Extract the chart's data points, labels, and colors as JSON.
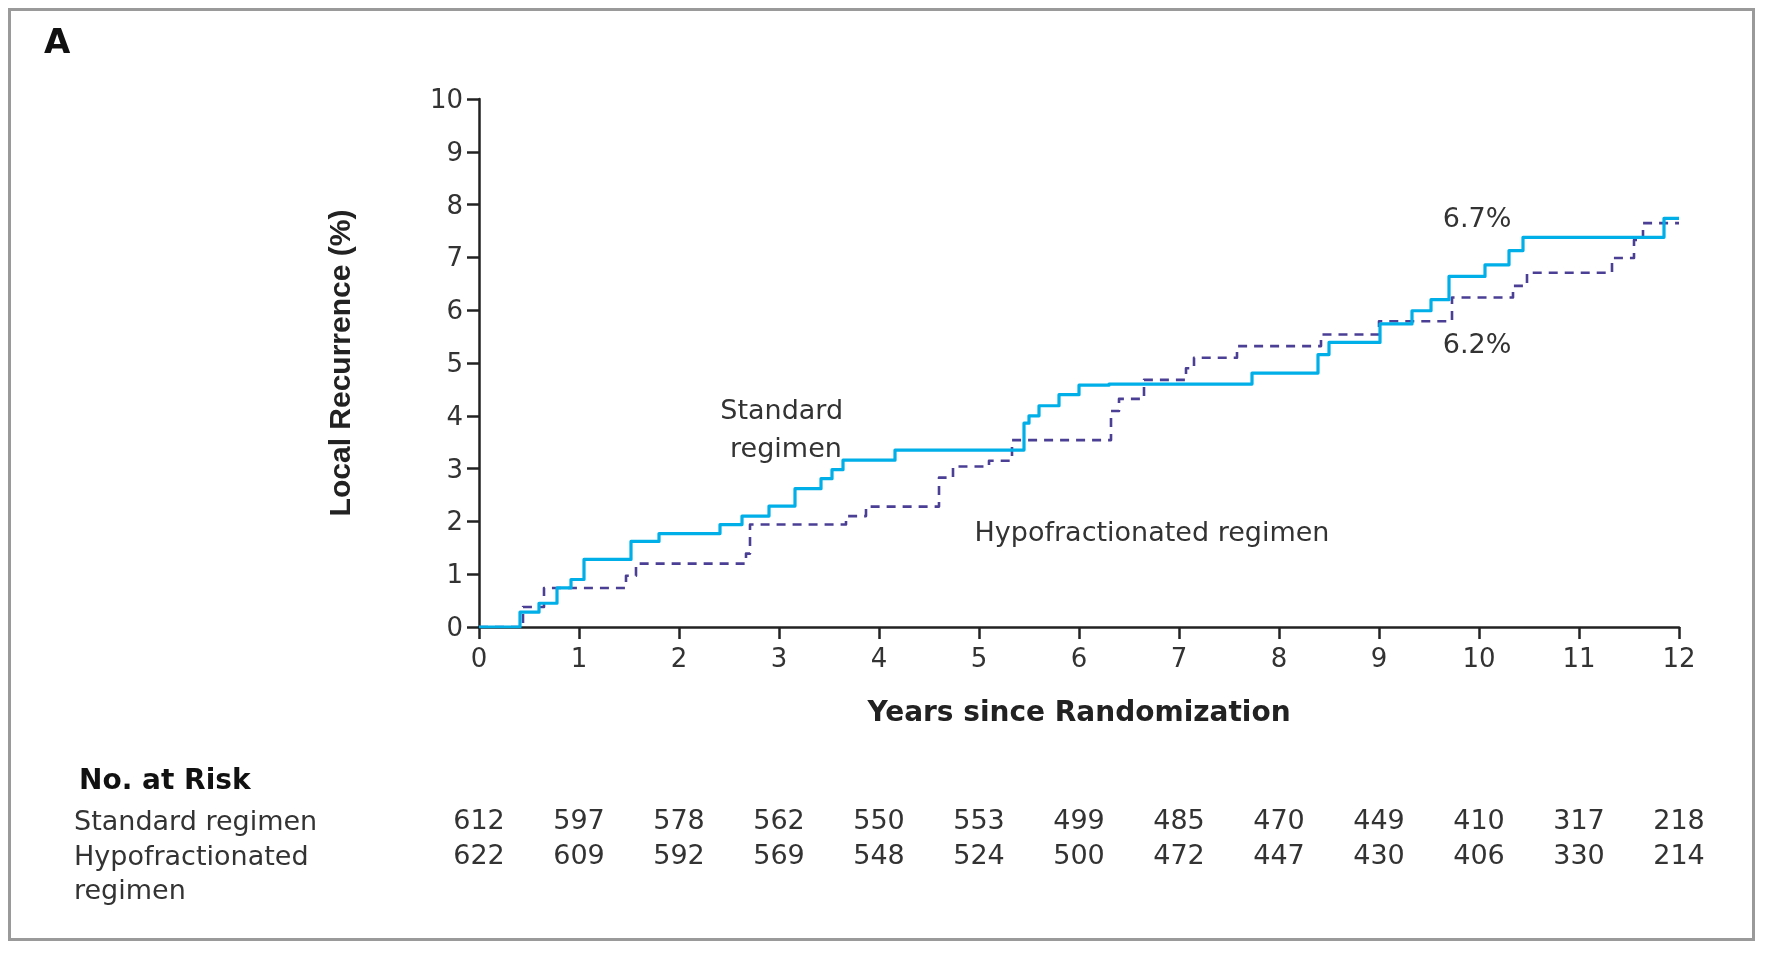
{
  "chart_data": [
    {
      "type": "step",
      "xlabel": "Years since Randomization",
      "ylabel": "Local Recurrence (%)",
      "xlim": [
        0,
        12
      ],
      "xticks": [
        0,
        1,
        2,
        3,
        4,
        5,
        6,
        7,
        8,
        9,
        10,
        11,
        12
      ],
      "ylim": [
        0,
        10
      ],
      "yticks": [
        0,
        1,
        2,
        3,
        4,
        5,
        6,
        7,
        8,
        9,
        10
      ],
      "grid": false,
      "marker": "none",
      "series": [
        {
          "color": "#00aee8",
          "line_style": "solid",
          "x": [
            0,
            0.41,
            0.6,
            0.78,
            0.92,
            1.05,
            1.52,
            1.8,
            2.41,
            2.63,
            2.9,
            3.16,
            3.42,
            3.53,
            3.64,
            4.16,
            5.45,
            5.5,
            5.6,
            5.8,
            6.0,
            6.3,
            7.73,
            8.39,
            8.5,
            9.01,
            9.33,
            9.52,
            9.7,
            10.06,
            10.3,
            10.44,
            11.85,
            12
          ],
          "values": [
            0,
            0.28,
            0.45,
            0.74,
            0.9,
            1.28,
            1.62,
            1.77,
            1.94,
            2.1,
            2.29,
            2.62,
            2.81,
            2.98,
            3.16,
            3.35,
            3.86,
            4.0,
            4.19,
            4.4,
            4.58,
            4.6,
            4.81,
            5.16,
            5.39,
            5.74,
            5.99,
            6.2,
            6.64,
            6.86,
            7.13,
            7.38,
            7.74,
            7.74
          ]
        },
        {
          "color": "#4a3f94",
          "line_style": "dashed",
          "x": [
            0,
            0.44,
            0.65,
            1.47,
            1.57,
            2.67,
            2.71,
            3.67,
            3.87,
            4.6,
            4.74,
            5.1,
            5.33,
            6.32,
            6.4,
            6.65,
            7.07,
            7.15,
            7.58,
            8.42,
            9.0,
            9.73,
            10.34,
            10.48,
            11.33,
            11.55,
            11.64,
            12
          ],
          "values": [
            0,
            0.38,
            0.74,
            0.97,
            1.2,
            1.39,
            1.94,
            2.1,
            2.28,
            2.83,
            3.04,
            3.15,
            3.54,
            4.09,
            4.32,
            4.68,
            4.9,
            5.1,
            5.32,
            5.54,
            5.79,
            6.24,
            6.46,
            6.71,
            6.99,
            7.33,
            7.65,
            7.65
          ]
        }
      ],
      "annotations": [
        "A",
        "Standard regimen",
        "Hypofractionated regimen",
        "6.7%",
        "6.2%"
      ]
    },
    {
      "type": "heatmap",
      "title": "No. at Risk",
      "categories": [
        null,
        null,
        null,
        null,
        null,
        null,
        null,
        null,
        null,
        null,
        null,
        null,
        null
      ],
      "y_categories": [
        "Standard regimen",
        "Hypofractionated regimen"
      ],
      "data_labels": true,
      "cells": [
        [
          612,
          597,
          578,
          562,
          550,
          553,
          499,
          485,
          470,
          449,
          410,
          317,
          218
        ],
        [
          622,
          609,
          592,
          569,
          548,
          524,
          500,
          472,
          447,
          430,
          406,
          330,
          214
        ]
      ]
    }
  ]
}
